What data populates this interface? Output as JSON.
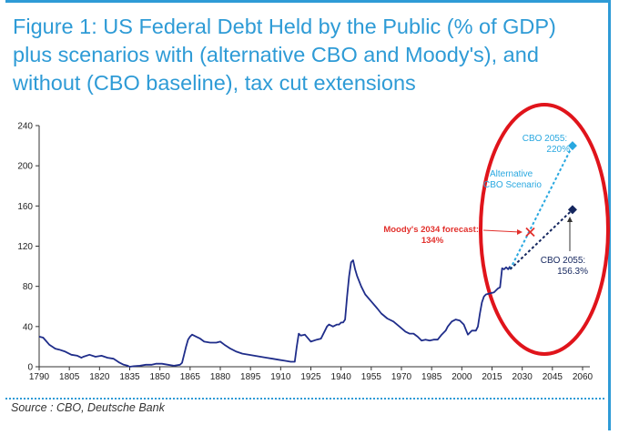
{
  "title_lines": [
    "Figure 1: US Federal Debt Held by the Public (% of GDP)",
    "plus scenarios with (alternative CBO and Moody's), and",
    "without (CBO baseline), tax cut extensions"
  ],
  "source": "Source : CBO, Deutsche Bank",
  "colors": {
    "accent": "#2e9bd6",
    "history_line": "#1f2d8a",
    "alternative": "#29a8e0",
    "baseline": "#14265e",
    "moodys": "#e2302c",
    "highlight_ellipse": "#e0141b"
  },
  "chart_data": {
    "type": "line",
    "title": "Figure 1: US Federal Debt Held by the Public (% of GDP) plus scenarios with (alternative CBO and Moody's), and without (CBO baseline), tax cut extensions",
    "xlabel": "",
    "ylabel": "",
    "xlim": [
      1790,
      2062
    ],
    "ylim": [
      0,
      240
    ],
    "xticks": [
      1790,
      1805,
      1820,
      1835,
      1850,
      1865,
      1880,
      1895,
      1910,
      1925,
      1940,
      1955,
      1970,
      1985,
      2000,
      2015,
      2030,
      2045,
      2060
    ],
    "yticks": [
      0,
      40,
      80,
      120,
      160,
      200,
      240
    ],
    "grid": false,
    "series": [
      {
        "name": "",
        "x": [
          1790,
          1792,
          1795,
          1798,
          1800,
          1803,
          1806,
          1809,
          1811,
          1812,
          1815,
          1818,
          1821,
          1824,
          1827,
          1830,
          1832,
          1834,
          1835,
          1837,
          1840,
          1843,
          1846,
          1848,
          1851,
          1854,
          1857,
          1860,
          1861,
          1862,
          1863,
          1864,
          1865,
          1866,
          1868,
          1870,
          1872,
          1875,
          1878,
          1880,
          1882,
          1885,
          1888,
          1891,
          1894,
          1897,
          1900,
          1903,
          1906,
          1909,
          1912,
          1915,
          1917,
          1918,
          1919,
          1920,
          1922,
          1925,
          1928,
          1930,
          1931,
          1932,
          1933,
          1934,
          1936,
          1938,
          1939,
          1940,
          1941,
          1942,
          1943,
          1944,
          1945,
          1946,
          1947,
          1948,
          1950,
          1952,
          1955,
          1958,
          1960,
          1963,
          1966,
          1969,
          1972,
          1974,
          1976,
          1978,
          1980,
          1982,
          1984,
          1986,
          1988,
          1990,
          1992,
          1993,
          1995,
          1997,
          1999,
          2001,
          2003,
          2005,
          2007,
          2008,
          2009,
          2010,
          2011,
          2012,
          2014,
          2016,
          2018,
          2019,
          2020,
          2021,
          2022,
          2023,
          2024
        ],
        "values": [
          30,
          29,
          22,
          18,
          17,
          15,
          12,
          11,
          9,
          10,
          12,
          10,
          11,
          9,
          8,
          4,
          2,
          1,
          0,
          0.5,
          1,
          2,
          2,
          3,
          3,
          2,
          1,
          2,
          4,
          12,
          20,
          27,
          30,
          32,
          30,
          28,
          25,
          24,
          24,
          25,
          22,
          18,
          15,
          13,
          12,
          11,
          10,
          9,
          8,
          7,
          6,
          5,
          5,
          20,
          33,
          31,
          32,
          25,
          27,
          28,
          32,
          36,
          40,
          42,
          40,
          42,
          42,
          44,
          44,
          47,
          70,
          90,
          104,
          106,
          97,
          90,
          80,
          72,
          65,
          58,
          53,
          48,
          45,
          40,
          35,
          33,
          33,
          30,
          26,
          27,
          26,
          27,
          27,
          32,
          36,
          40,
          45,
          47,
          46,
          42,
          32,
          36,
          36,
          40,
          53,
          64,
          70,
          72,
          73,
          74,
          78,
          79,
          98,
          97,
          99,
          97,
          100
        ]
      },
      {
        "name": "Alternative CBO Scenario",
        "x": [
          2024,
          2055
        ],
        "values": [
          97,
          220
        ]
      },
      {
        "name": "",
        "x": [
          2024,
          2055
        ],
        "values": [
          97,
          156.3
        ]
      }
    ],
    "annotations": [
      {
        "label": "CBO 2055: 220%",
        "x": 2055,
        "y": 220
      },
      {
        "label": "CBO 2055: 156.3%",
        "x": 2055,
        "y": 156.3
      },
      {
        "label": "Moody's 2034 forecast: 134%",
        "x": 2034,
        "y": 134
      },
      {
        "label": "Alternative CBO Scenario",
        "x": 2035,
        "y": 190
      }
    ]
  }
}
